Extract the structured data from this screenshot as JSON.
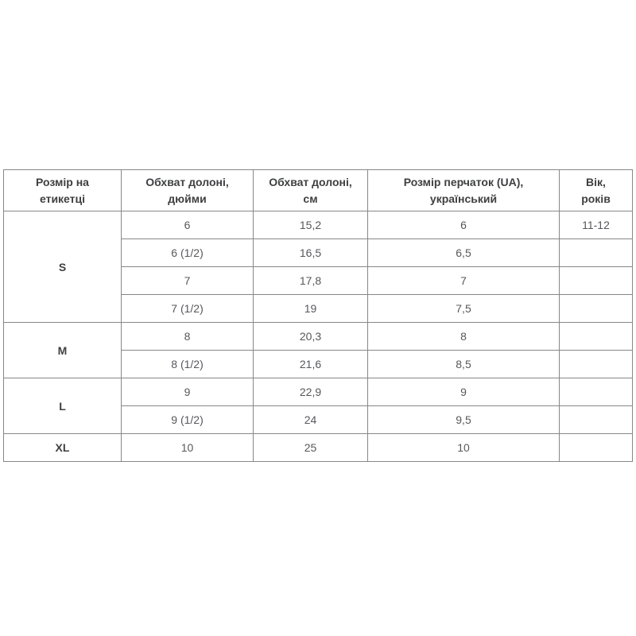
{
  "colors": {
    "background": "#ffffff",
    "table_border": "#878787",
    "header_text": "#3e3f41",
    "cell_text": "#57585c"
  },
  "table": {
    "columns": [
      {
        "line1": "Розмір на",
        "line2": "етикетці"
      },
      {
        "line1": "Обхват долоні,",
        "line2": "дюйми"
      },
      {
        "line1": "Обхват долоні,",
        "line2": "см"
      },
      {
        "line1": "Розмір перчаток (UA),",
        "line2": "український"
      },
      {
        "line1": "Вік,",
        "line2": "років"
      }
    ],
    "rows": [
      {
        "label": "S",
        "label_rowspan": 4,
        "inches": "6",
        "cm": "15,2",
        "ua": "6",
        "age": "11-12"
      },
      {
        "inches": "6 (1/2)",
        "cm": "16,5",
        "ua": "6,5",
        "age": ""
      },
      {
        "inches": "7",
        "cm": "17,8",
        "ua": "7",
        "age": ""
      },
      {
        "inches": "7 (1/2)",
        "cm": "19",
        "ua": "7,5",
        "age": ""
      },
      {
        "label": "M",
        "label_rowspan": 2,
        "inches": "8",
        "cm": "20,3",
        "ua": "8",
        "age": ""
      },
      {
        "inches": "8 (1/2)",
        "cm": "21,6",
        "ua": "8,5",
        "age": ""
      },
      {
        "label": "L",
        "label_rowspan": 2,
        "inches": "9",
        "cm": "22,9",
        "ua": "9",
        "age": ""
      },
      {
        "inches": "9 (1/2)",
        "cm": "24",
        "ua": "9,5",
        "age": ""
      },
      {
        "label": "XL",
        "label_rowspan": 1,
        "inches": "10",
        "cm": "25",
        "ua": "10",
        "age": ""
      }
    ]
  }
}
